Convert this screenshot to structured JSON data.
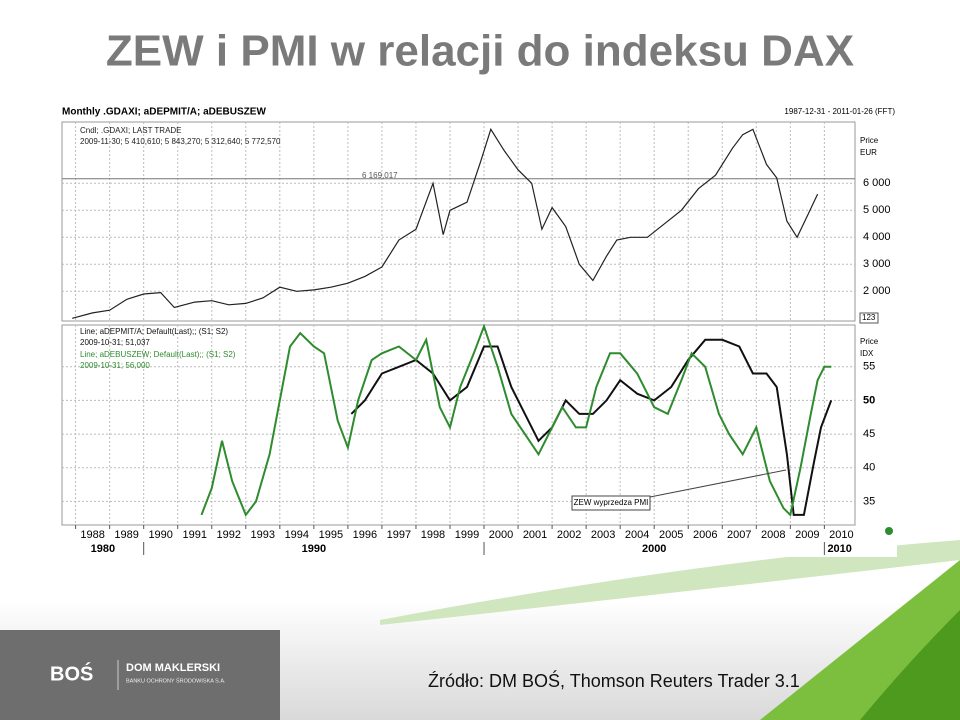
{
  "slide": {
    "title": "ZEW i PMI w relacji do indeksu DAX",
    "source": "Źródło: DM BOŚ, Thomson Reuters Trader 3.1",
    "logo": {
      "mark": "BOŚ",
      "name": "DOM MAKLERSKI",
      "subtitle": "BANKU OCHRONY ŚRODOWISKA S.A."
    }
  },
  "chart_header": {
    "title": "Monthly .GDAXI; aDEPMIT/A; aDEBUSZEW",
    "range": "1987-12-31 - 2011-01-26 (FFT)"
  },
  "chart_data": [
    {
      "type": "line",
      "xlim": [
        1987.6,
        2010.9
      ],
      "ylim": [
        900,
        8270
      ],
      "yticks": [
        {
          "value": 2000,
          "label": "2 000"
        },
        {
          "value": 3000,
          "label": "3 000"
        },
        {
          "value": 4000,
          "label": "4 000"
        },
        {
          "value": 5000,
          "label": "5 000"
        },
        {
          "value": 6000,
          "label": "6 000"
        }
      ],
      "axis_title": [
        "Price",
        "EUR"
      ],
      "badge": "123",
      "grid": true,
      "ref_line": {
        "value": 6169.017,
        "label": "6 169,017"
      },
      "series": [
        {
          "name": "Cndl; .GDAXI; LAST TRADE",
          "color": "#222222",
          "last": "2009-11-30; 5 410,610; 5 843,270; 5 312,640; 5 772,570",
          "x": [
            1987.9,
            1988.5,
            1989.0,
            1989.5,
            1990.0,
            1990.5,
            1990.9,
            1991.5,
            1992.0,
            1992.5,
            1993.0,
            1993.5,
            1994.0,
            1994.5,
            1995.0,
            1995.5,
            1996.0,
            1996.5,
            1997.0,
            1997.5,
            1998.0,
            1998.5,
            1998.8,
            1999.0,
            1999.5,
            1999.9,
            2000.2,
            2000.6,
            2001.0,
            2001.4,
            2001.7,
            2002.0,
            2002.4,
            2002.8,
            2003.2,
            2003.6,
            2003.9,
            2004.3,
            2004.8,
            2005.3,
            2005.8,
            2006.3,
            2006.8,
            2007.3,
            2007.6,
            2007.9,
            2008.3,
            2008.6,
            2008.9,
            2009.2,
            2009.5,
            2009.8
          ],
          "values": [
            1000,
            1200,
            1300,
            1700,
            1900,
            1950,
            1400,
            1600,
            1650,
            1500,
            1550,
            1750,
            2150,
            2000,
            2050,
            2150,
            2300,
            2550,
            2900,
            3900,
            4300,
            6000,
            4100,
            5000,
            5300,
            6800,
            8000,
            7200,
            6500,
            6000,
            4300,
            5100,
            4400,
            3000,
            2400,
            3300,
            3900,
            4000,
            4000,
            4500,
            5000,
            5800,
            6300,
            7300,
            7800,
            8000,
            6700,
            6200,
            4600,
            4000,
            4800,
            5600
          ]
        }
      ]
    },
    {
      "type": "line",
      "xlim": [
        1987.6,
        2010.9
      ],
      "ylim": [
        31.5,
        61.2
      ],
      "yticks": [
        35,
        40,
        45,
        50,
        55
      ],
      "axis_title": [
        "Price",
        "IDX"
      ],
      "grid": true,
      "xticks": [
        1988,
        1989,
        1990,
        1991,
        1992,
        1993,
        1994,
        1995,
        1996,
        1997,
        1998,
        1999,
        2000,
        2001,
        2002,
        2003,
        2004,
        2005,
        2006,
        2007,
        2008,
        2009,
        2010
      ],
      "decades": [
        1980,
        1990,
        2000,
        2010
      ],
      "annotation": "ZEW wyprzedza PMI",
      "series": [
        {
          "name": "Line; aDEPMIT/A; Default(Last);; (S1; S2)",
          "color": "#111111",
          "last": "2009-10-31; 51,037",
          "x": [
            1996.1,
            1996.5,
            1997.0,
            1997.5,
            1998.0,
            1998.5,
            1999.0,
            1999.5,
            2000.0,
            2000.4,
            2000.8,
            2001.2,
            2001.6,
            2002.0,
            2002.4,
            2002.8,
            2003.2,
            2003.6,
            2004.0,
            2004.5,
            2005.0,
            2005.5,
            2006.0,
            2006.5,
            2007.0,
            2007.5,
            2007.9,
            2008.3,
            2008.6,
            2008.9,
            2009.1,
            2009.4,
            2009.7,
            2009.9,
            2010.2
          ],
          "values": [
            48,
            50,
            54,
            55,
            56,
            54,
            50,
            52,
            58,
            58,
            52,
            48,
            44,
            46,
            50,
            48,
            48,
            50,
            53,
            51,
            50,
            52,
            56,
            59,
            59,
            58,
            54,
            54,
            52,
            42,
            33,
            33,
            41,
            46,
            50
          ]
        },
        {
          "name": "Line; aDEBUSZEW; Default(Last);; (S1; S2)",
          "color": "#2e8b2e",
          "last": "2009-10-31; 56,000",
          "x": [
            1991.7,
            1992.0,
            1992.3,
            1992.6,
            1993.0,
            1993.3,
            1993.7,
            1994.0,
            1994.3,
            1994.6,
            1995.0,
            1995.3,
            1995.7,
            1996.0,
            1996.3,
            1996.7,
            1997.0,
            1997.5,
            1998.0,
            1998.3,
            1998.7,
            1999.0,
            1999.3,
            1999.7,
            2000.0,
            2000.4,
            2000.8,
            2001.2,
            2001.6,
            2002.0,
            2002.3,
            2002.7,
            2003.0,
            2003.3,
            2003.7,
            2004.0,
            2004.5,
            2005.0,
            2005.4,
            2005.8,
            2006.1,
            2006.5,
            2006.9,
            2007.2,
            2007.6,
            2008.0,
            2008.4,
            2008.8,
            2009.0,
            2009.3,
            2009.6,
            2009.8,
            2010.0,
            2010.2
          ],
          "values": [
            33,
            37,
            44,
            38,
            33,
            35,
            42,
            50,
            58,
            60,
            58,
            57,
            47,
            43,
            50,
            56,
            57,
            58,
            56,
            59,
            49,
            46,
            52,
            57,
            61,
            55,
            48,
            45,
            42,
            46,
            49,
            46,
            46,
            52,
            57,
            57,
            54,
            49,
            48,
            53,
            57,
            55,
            48,
            45,
            42,
            46,
            38,
            34,
            33,
            40,
            48,
            53,
            55,
            55
          ]
        }
      ]
    }
  ]
}
